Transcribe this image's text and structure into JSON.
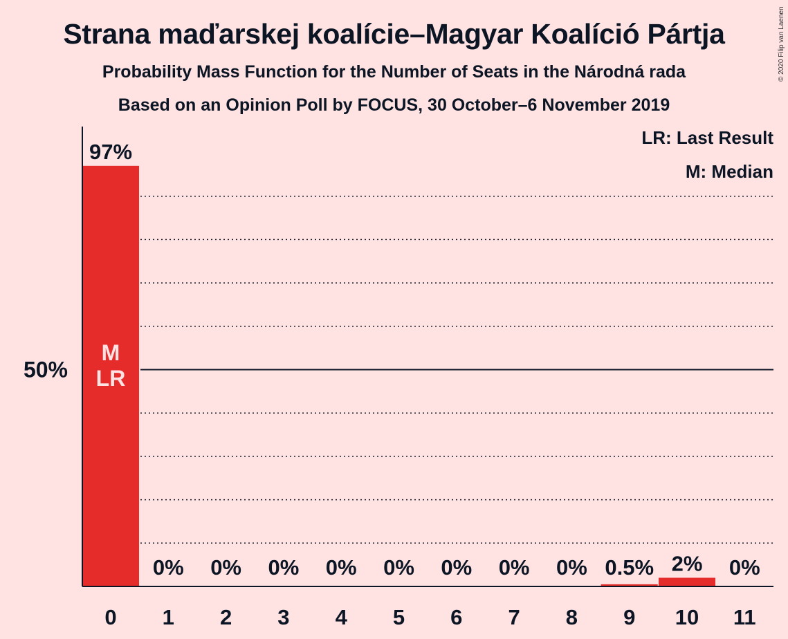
{
  "title": "Strana maďarskej koalície–Magyar Koalíció Pártja",
  "subtitle_1": "Probability Mass Function for the Number of Seats in the Národná rada",
  "subtitle_2": "Based on an Opinion Poll by FOCUS, 30 October–6 November 2019",
  "copyright": "© 2020 Filip van Laenen",
  "legend": {
    "last_result": "LR: Last Result",
    "median": "M: Median"
  },
  "colors": {
    "background": "#FFE2E2",
    "bar": "#E62B2B",
    "text": "#0C1524",
    "inbar_text": "#FFE2E2"
  },
  "chart_data": {
    "type": "bar",
    "categories": [
      "0",
      "1",
      "2",
      "3",
      "4",
      "5",
      "6",
      "7",
      "8",
      "9",
      "10",
      "11"
    ],
    "values": [
      97,
      0,
      0,
      0,
      0,
      0,
      0,
      0,
      0,
      0.5,
      2,
      0
    ],
    "value_labels": [
      "97%",
      "0%",
      "0%",
      "0%",
      "0%",
      "0%",
      "0%",
      "0%",
      "0%",
      "0.5%",
      "2%",
      "0%"
    ],
    "ylim": [
      0,
      100
    ],
    "y_ticks": [
      {
        "value": 50,
        "label": "50%"
      }
    ],
    "gridlines_dotted": [
      10,
      20,
      30,
      40,
      60,
      70,
      80,
      90
    ],
    "gridline_solid": 50,
    "median_category": "0",
    "last_result_category": "0",
    "bar_annotations": [
      "M",
      "LR"
    ],
    "legend_position": "top-right"
  }
}
